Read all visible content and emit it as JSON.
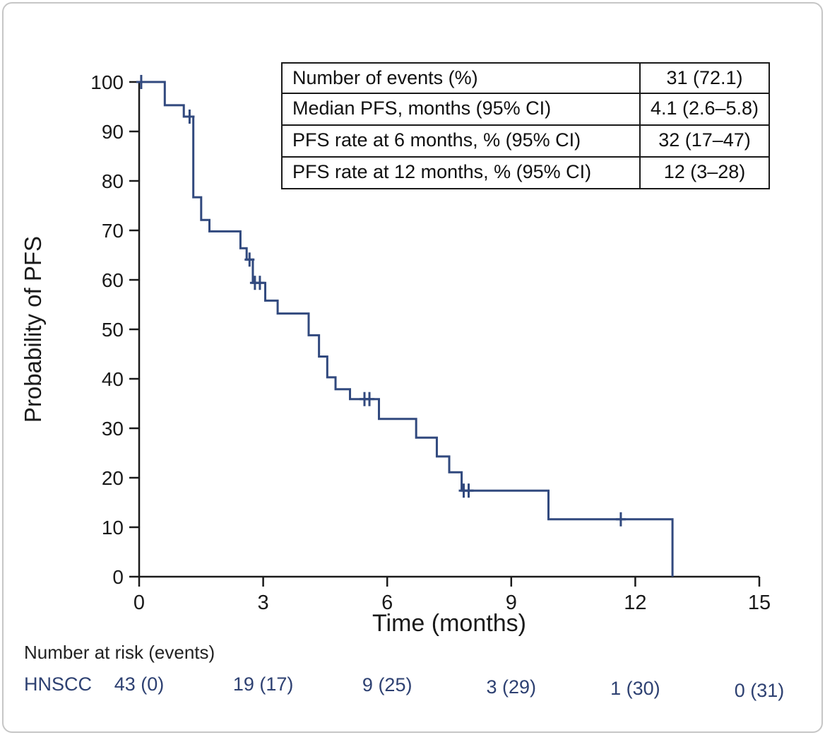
{
  "chart_data": {
    "type": "line",
    "subtype": "kaplan-meier-step",
    "title": "",
    "xlabel": "Time (months)",
    "ylabel": "Probability of PFS",
    "xlim": [
      0,
      15
    ],
    "ylim": [
      0,
      100
    ],
    "x_ticks": [
      0,
      3,
      6,
      9,
      12,
      15
    ],
    "y_ticks": [
      0,
      10,
      20,
      30,
      40,
      50,
      60,
      70,
      80,
      90,
      100
    ],
    "grid": false,
    "legend": "none",
    "line_color": "#31497e",
    "axis_color": "#1a1a1a",
    "series": [
      {
        "name": "HNSCC",
        "steps": [
          [
            0,
            100
          ],
          [
            0.62,
            95.3
          ],
          [
            1.08,
            93.0
          ],
          [
            1.31,
            76.7
          ],
          [
            1.5,
            72.1
          ],
          [
            1.7,
            69.8
          ],
          [
            2.45,
            66.4
          ],
          [
            2.6,
            64.1
          ],
          [
            2.75,
            59.4
          ],
          [
            3.05,
            55.8
          ],
          [
            3.35,
            53.2
          ],
          [
            4.1,
            48.8
          ],
          [
            4.35,
            44.5
          ],
          [
            4.55,
            40.3
          ],
          [
            4.75,
            37.9
          ],
          [
            5.1,
            35.9
          ],
          [
            5.8,
            31.9
          ],
          [
            6.7,
            28.1
          ],
          [
            7.2,
            24.3
          ],
          [
            7.5,
            21.1
          ],
          [
            7.8,
            17.4
          ],
          [
            9.9,
            11.6
          ],
          [
            12.9,
            0
          ]
        ],
        "censor_marks": [
          [
            0.05,
            100
          ],
          [
            1.22,
            93.0
          ],
          [
            2.67,
            64.1
          ],
          [
            2.8,
            59.4
          ],
          [
            2.92,
            59.4
          ],
          [
            5.45,
            35.9
          ],
          [
            5.57,
            35.9
          ],
          [
            7.85,
            17.4
          ],
          [
            7.97,
            17.4
          ],
          [
            11.65,
            11.6
          ]
        ]
      }
    ],
    "stats_table": {
      "rows": [
        {
          "label": "Number of events (%)",
          "value": "31 (72.1)"
        },
        {
          "label": "Median PFS, months (95% CI)",
          "value": "4.1 (2.6–5.8)"
        },
        {
          "label": "PFS rate at 6 months, % (95% CI)",
          "value": "32 (17–47)"
        },
        {
          "label": "PFS rate at 12 months, % (95% CI)",
          "value": "12 (3–28)"
        }
      ]
    },
    "risk_table": {
      "header": "Number at risk (events)",
      "group": "HNSCC",
      "times": [
        0,
        3,
        6,
        9,
        12,
        15
      ],
      "values": [
        "43 (0)",
        "19 (17)",
        "9 (25)",
        "3 (29)",
        "1 (30)",
        "0 (31)"
      ],
      "text_color": "#2e4172"
    }
  }
}
